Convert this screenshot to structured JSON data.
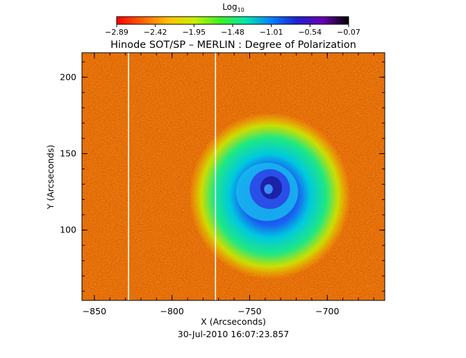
{
  "chart_data": {
    "type": "heatmap",
    "title": "Hinode SOT/SP – MERLIN : Degree of Polarization",
    "xlabel": "X (Arcseconds)",
    "ylabel": "Y (Arcseconds)",
    "xlim": [
      -858,
      -663
    ],
    "ylim": [
      54,
      216
    ],
    "x_ticks": [
      -850,
      -800,
      -750,
      -700
    ],
    "x_tick_labels": [
      "−850",
      "−800",
      "−750",
      "−700"
    ],
    "y_ticks": [
      100,
      150,
      200
    ],
    "y_tick_labels": [
      "100",
      "150",
      "200"
    ],
    "date_label": "30-Jul-2010 16:07:23.857",
    "colorbar": {
      "title_prefix": "Log",
      "title_subscript": "10",
      "ticks": [
        -2.89,
        -2.42,
        -1.95,
        -1.48,
        -1.01,
        -0.54,
        -0.07
      ],
      "tick_labels": [
        "−2.89",
        "−2.42",
        "−1.95",
        "−1.48",
        "−1.01",
        "−0.54",
        "−0.07"
      ],
      "range": [
        -2.89,
        -0.07
      ],
      "colors": [
        "#ff0000",
        "#ff6000",
        "#ffc000",
        "#c8f000",
        "#40f020",
        "#00e8b0",
        "#0080ff",
        "#2020d0",
        "#6a00b0",
        "#000000"
      ]
    },
    "features": {
      "sunspot_umbra_center": [
        -737,
        125
      ],
      "sunspot_umbra_radius": 10,
      "sunspot_penumbra_radius": 20,
      "background_level": -2.6,
      "umbra_level": -0.75,
      "white_columns_x": [
        -828,
        -772
      ]
    }
  }
}
